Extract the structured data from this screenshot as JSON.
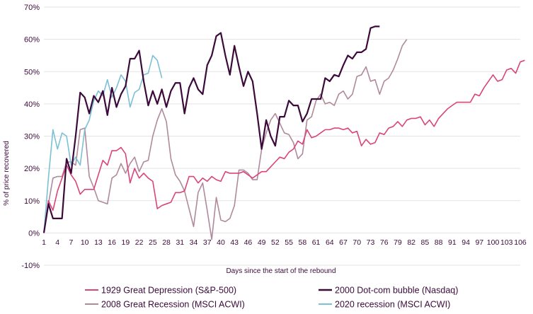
{
  "chart_data": {
    "type": "line",
    "title": "",
    "xlabel": "Days since the start of the rebound",
    "ylabel": "% of price recovered",
    "xlim": [
      1,
      106
    ],
    "ylim": [
      -10,
      70
    ],
    "y_ticks": [
      -10,
      0,
      10,
      20,
      30,
      40,
      50,
      60,
      70
    ],
    "y_tick_labels": [
      "-10%",
      "0%",
      "10%",
      "20%",
      "30%",
      "40%",
      "50%",
      "60%",
      "70%"
    ],
    "x_tick_labels": [
      "1",
      "4",
      "7",
      "10",
      "13",
      "16",
      "19",
      "22",
      "25",
      "28",
      "31",
      "34",
      "37",
      "40",
      "43",
      "46",
      "49",
      "52",
      "55",
      "58",
      "61",
      "64",
      "67",
      "70",
      "73",
      "76",
      "79",
      "82",
      "85",
      "88",
      "91",
      "94",
      "97",
      "100",
      "103",
      "106"
    ],
    "grid": "horizontal",
    "legend_position": "bottom",
    "series": [
      {
        "name": "1929 Great Depression (S&P-500)",
        "color": "#d9457a",
        "values": [
          0,
          10,
          7,
          13,
          17,
          21,
          18,
          16,
          12,
          13.5,
          13.5,
          13.5,
          18,
          22.5,
          21,
          25.5,
          25.5,
          26.5,
          24.5,
          15.5,
          20,
          17,
          18.5,
          17,
          16,
          7.5,
          8.5,
          9,
          9.5,
          12.5,
          12.5,
          13,
          17.5,
          17.5,
          15.5,
          17,
          16,
          17.5,
          16.5,
          16,
          19,
          18.5,
          18.5,
          18.5,
          19,
          18,
          17,
          18,
          19,
          19,
          20.5,
          22,
          23.5,
          23,
          25,
          26,
          28.5,
          27.5,
          32,
          29.5,
          30,
          31,
          32,
          32,
          32.5,
          32.5,
          32,
          32.5,
          31,
          31.5,
          27,
          29,
          27.5,
          28,
          31,
          30.5,
          32.5,
          33,
          34.5,
          33,
          35,
          35.5,
          35.5,
          36,
          33.5,
          35,
          33,
          35.5,
          37,
          38.5,
          39.5,
          40.5,
          40.5,
          40.5,
          40.5,
          43,
          42.5,
          45,
          47,
          49,
          47,
          47.5,
          50.5,
          51,
          49.5,
          53,
          53.5
        ]
      },
      {
        "name": "2000 Dot-com bubble (Nasdaq)",
        "color": "#3b0a3a",
        "values": [
          0,
          9,
          4.5,
          4.5,
          4.5,
          23,
          18.5,
          30,
          43.5,
          42,
          37,
          42.5,
          40.5,
          44,
          36.5,
          45,
          39,
          43,
          45.5,
          54,
          54,
          56.5,
          47,
          39.5,
          44,
          40,
          44.5,
          39,
          44,
          46.5,
          46.5,
          37,
          45,
          48,
          44.5,
          43,
          52,
          55,
          61,
          62,
          55,
          49,
          58,
          51.5,
          45.5,
          50,
          47,
          37,
          26,
          35,
          30,
          27,
          36,
          36,
          41,
          39.5,
          39.5,
          34.5,
          37,
          41.5,
          41.5,
          41.5,
          48,
          47,
          49,
          48.5,
          52,
          55,
          54,
          56,
          56,
          57,
          63.5,
          64,
          64
        ]
      },
      {
        "name": "2008 Great Recession (MSCI ACWI)",
        "color": "#b08a9c",
        "values": [
          0,
          9,
          17,
          17.5,
          17.5,
          22,
          22,
          21,
          32,
          32.5,
          17.5,
          14,
          10,
          9.5,
          9,
          17,
          18,
          21.5,
          18.5,
          21.5,
          23.5,
          19,
          22,
          22.5,
          30,
          35,
          38.5,
          34.5,
          23,
          18,
          16,
          13,
          7.5,
          2,
          12.5,
          15.5,
          7,
          -2,
          11,
          4,
          3.5,
          4.5,
          8.5,
          19.5,
          19.5,
          18.5,
          16.5,
          16.5,
          26,
          31,
          35,
          37,
          34,
          31,
          30.5,
          28,
          23,
          24.5,
          35,
          36,
          41,
          43,
          40,
          40.5,
          39.5,
          43,
          44,
          41.5,
          43,
          48.5,
          49,
          51.5,
          47,
          47.5,
          43,
          47,
          48,
          50.5,
          54,
          58,
          60
        ]
      },
      {
        "name": "2020 recession (MSCI ACWI)",
        "color": "#7cc0d6",
        "values": [
          0,
          17,
          32,
          26,
          31,
          30,
          21,
          23.5,
          21,
          32,
          35,
          41,
          44,
          42.5,
          47.5,
          42,
          45,
          49,
          47,
          39,
          43.5,
          44.5,
          49,
          49.5,
          55,
          53.5,
          48
        ]
      }
    ]
  }
}
